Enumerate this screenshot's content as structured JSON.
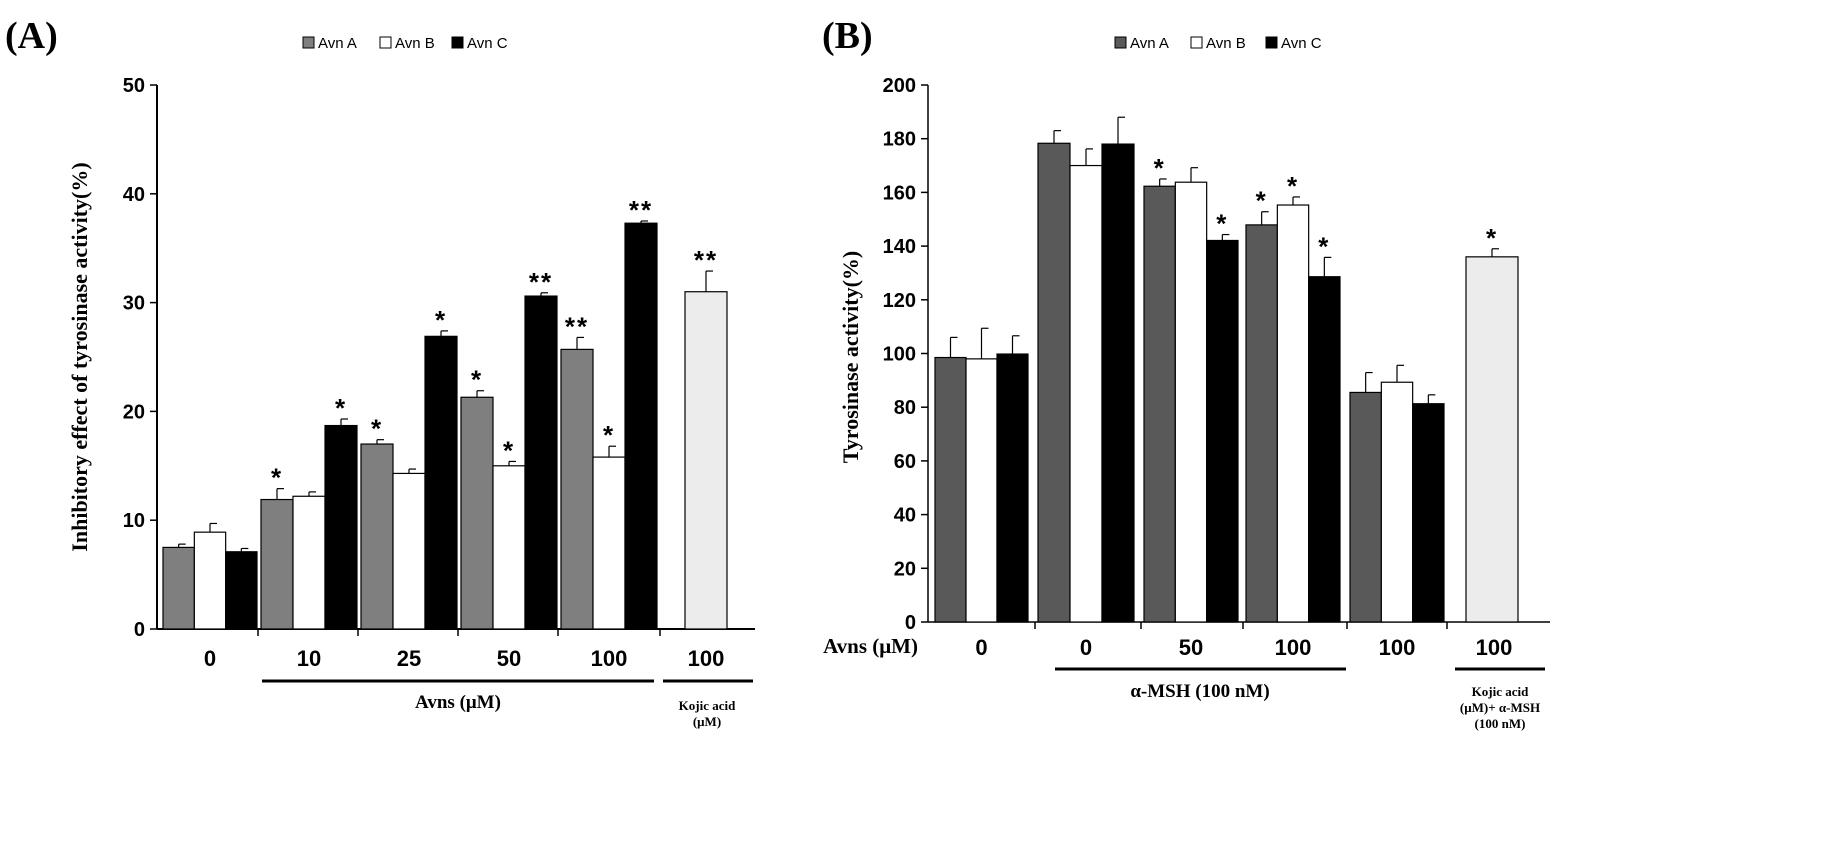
{
  "chart_data": [
    {
      "type": "bar",
      "panel_label": "(A)",
      "ylabel": "Inhibitory effect of tyrosinase activity(%)",
      "ylim": [
        0,
        50
      ],
      "yticks": [
        "0",
        "10",
        "20",
        "30",
        "40",
        "50"
      ],
      "legend": {
        "placement": "top-center",
        "entries": [
          "Avn A",
          "Avn B",
          "Avn C"
        ]
      },
      "colors": {
        "Avn A": "#7f7f7f",
        "Avn B": "#ffffff",
        "Avn C": "#000000",
        "Kojic acid": "#ececec"
      },
      "categories": [
        "0",
        "10",
        "25",
        "50",
        "100"
      ],
      "series": [
        {
          "name": "Avn A",
          "values": [
            7.5,
            11.9,
            17.0,
            21.3,
            25.7
          ],
          "errors": [
            0.3,
            1.0,
            0.4,
            0.6,
            1.1
          ],
          "significance": [
            "",
            "*",
            "*",
            "*",
            "**"
          ]
        },
        {
          "name": "Avn B",
          "values": [
            8.9,
            12.2,
            14.3,
            15.0,
            15.8
          ],
          "errors": [
            0.8,
            0.4,
            0.4,
            0.4,
            1.0
          ],
          "significance": [
            "",
            "",
            "",
            "*",
            "*"
          ]
        },
        {
          "name": "Avn C",
          "values": [
            7.1,
            18.7,
            26.9,
            30.6,
            37.3
          ],
          "errors": [
            0.3,
            0.6,
            0.5,
            0.3,
            0.2
          ],
          "significance": [
            "",
            "*",
            "*",
            "**",
            "**"
          ]
        }
      ],
      "extra_bar": {
        "category": "100",
        "value": 31.0,
        "error": 1.9,
        "significance": "**"
      },
      "group_labels": [
        {
          "text": "Avns (μM)"
        },
        {
          "text": "Kojic acid\n(μM)"
        }
      ]
    },
    {
      "type": "bar",
      "panel_label": "(B)",
      "ylabel": "Tyrosinase activity(%)",
      "xlabel_prefix": "Avns (μM)",
      "ylim": [
        0,
        200
      ],
      "yticks": [
        "0",
        "20",
        "40",
        "60",
        "80",
        "100",
        "120",
        "140",
        "160",
        "180",
        "200"
      ],
      "legend": {
        "placement": "top-center",
        "entries": [
          "Avn A",
          "Avn B",
          "Avn C"
        ]
      },
      "colors": {
        "Avn A": "#595959",
        "Avn B": "#ffffff",
        "Avn C": "#000000",
        "Kojic acid": "#ececec"
      },
      "categories": [
        "0",
        "0",
        "50",
        "100",
        "100"
      ],
      "series": [
        {
          "name": "Avn A",
          "values": [
            98.5,
            178.3,
            162.3,
            147.9,
            85.5
          ],
          "errors": [
            7.5,
            4.7,
            2.7,
            4.9,
            7.4
          ],
          "significance": [
            "",
            "",
            "*",
            "*",
            ""
          ]
        },
        {
          "name": "Avn B",
          "values": [
            98.0,
            170.0,
            163.8,
            155.3,
            89.3
          ],
          "errors": [
            11.4,
            6.2,
            5.4,
            3.0,
            6.3
          ],
          "significance": [
            "",
            "",
            "",
            "*",
            ""
          ]
        },
        {
          "name": "Avn C",
          "values": [
            99.8,
            178.0,
            142.1,
            128.6,
            81.3
          ],
          "errors": [
            6.8,
            10.0,
            2.2,
            7.2,
            3.3
          ],
          "significance": [
            "",
            "",
            "*",
            "*",
            ""
          ]
        }
      ],
      "extra_bar": {
        "category": "100",
        "value": 136.0,
        "error": 3.0,
        "significance": "*"
      },
      "group_labels": [
        {
          "text": "α-MSH (100 nM)"
        },
        {
          "text": "Kojic acid\n(μM)+ α-MSH\n(100 nM)"
        }
      ]
    }
  ]
}
